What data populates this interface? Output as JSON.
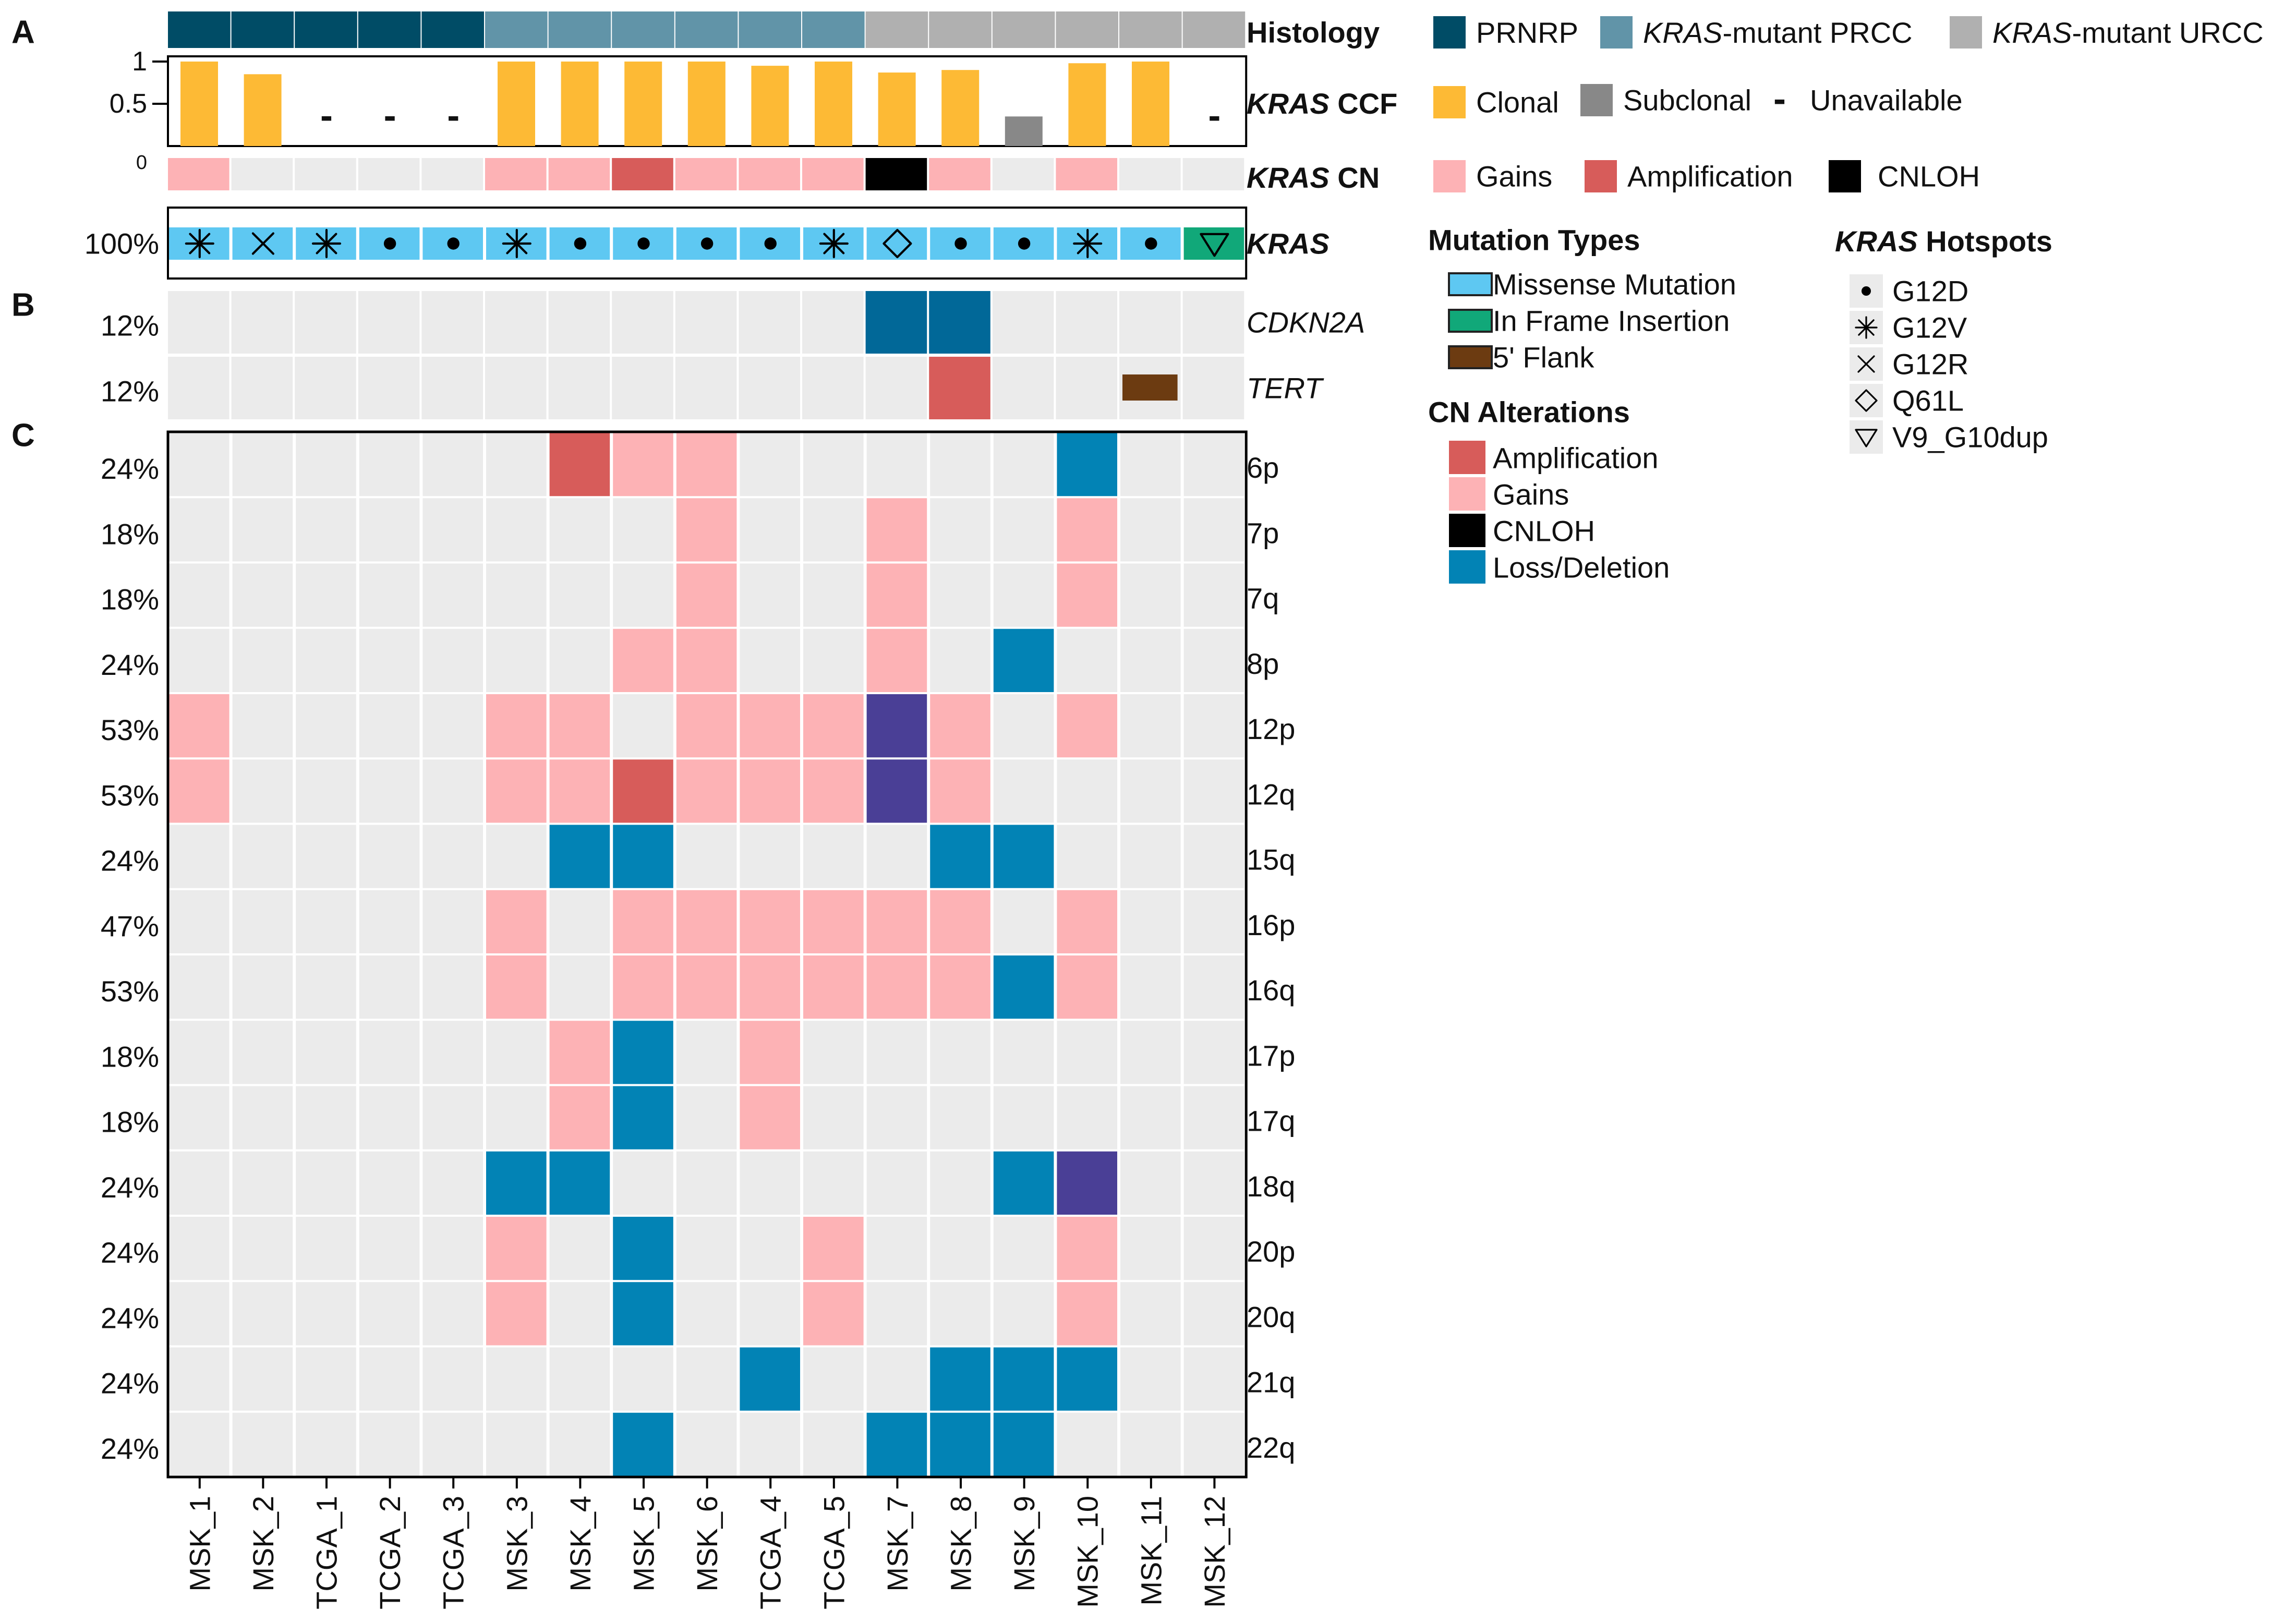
{
  "colors": {
    "background_cell": "#EBEBEB",
    "PRNRP": "#004C66",
    "PRCC": "#6194A8",
    "URCC": "#B0B0B0",
    "clonal": "#FDBA35",
    "subclonal": "#888888",
    "gain": "#FDB2B5",
    "amplification": "#D75C5A",
    "cnloh": "#000000",
    "loss": "#0283B5",
    "cdkn2a_loss": "#016898",
    "other_event": "#4A3F96",
    "missense": "#5EC8F2",
    "inframe": "#11A879",
    "flank": "#6C3B11"
  },
  "panel_letters": [
    "A",
    "B",
    "C"
  ],
  "chart_data": {
    "type": "heatmap",
    "samples": [
      "MSK_1",
      "MSK_2",
      "TCGA_1",
      "TCGA_2",
      "TCGA_3",
      "MSK_3",
      "MSK_4",
      "MSK_5",
      "MSK_6",
      "TCGA_4",
      "TCGA_5",
      "MSK_7",
      "MSK_8",
      "MSK_9",
      "MSK_10",
      "MSK_11",
      "MSK_12"
    ],
    "histology": {
      "label": "Histology",
      "values": [
        "PRNRP",
        "PRNRP",
        "PRNRP",
        "PRNRP",
        "PRNRP",
        "PRCC",
        "PRCC",
        "PRCC",
        "PRCC",
        "PRCC",
        "PRCC",
        "URCC",
        "URCC",
        "URCC",
        "URCC",
        "URCC",
        "URCC"
      ]
    },
    "ccf": {
      "label_gene": "KRAS",
      "label_suffix": " CCF",
      "ylim": [
        0,
        1
      ],
      "ticks": [
        "1",
        "0.5",
        "0"
      ],
      "tick_values": [
        1,
        0.5,
        0
      ],
      "values": [
        1.0,
        0.85,
        null,
        null,
        null,
        1.0,
        1.0,
        1.0,
        1.0,
        0.95,
        1.0,
        0.87,
        0.9,
        0.35,
        0.98,
        1.0,
        null
      ],
      "clonality": [
        "clonal",
        "clonal",
        "unavailable",
        "unavailable",
        "unavailable",
        "clonal",
        "clonal",
        "clonal",
        "clonal",
        "clonal",
        "clonal",
        "clonal",
        "clonal",
        "subclonal",
        "clonal",
        "clonal",
        "unavailable"
      ],
      "unavailable_mark": "-"
    },
    "kras_cn": {
      "label_gene": "KRAS",
      "label_suffix": " CN",
      "values": [
        "gain",
        "none",
        "none",
        "none",
        "none",
        "gain",
        "gain",
        "amplification",
        "gain",
        "gain",
        "gain",
        "cnloh",
        "gain",
        "none",
        "gain",
        "none",
        "none"
      ]
    },
    "kras_mutation": {
      "label": "KRAS",
      "percent": "100%",
      "types": [
        "missense",
        "missense",
        "missense",
        "missense",
        "missense",
        "missense",
        "missense",
        "missense",
        "missense",
        "missense",
        "missense",
        "missense",
        "missense",
        "missense",
        "missense",
        "missense",
        "inframe"
      ],
      "hotspots": [
        "G12V",
        "G12R",
        "G12V",
        "G12D",
        "G12D",
        "G12V",
        "G12D",
        "G12D",
        "G12D",
        "G12D",
        "G12V",
        "Q61L",
        "G12D",
        "G12D",
        "G12V",
        "G12D",
        "V9_G10dup"
      ]
    },
    "genes": [
      {
        "name": "CDKN2A",
        "percent": "12%",
        "values": [
          "none",
          "none",
          "none",
          "none",
          "none",
          "none",
          "none",
          "none",
          "none",
          "none",
          "none",
          "cdkn2a_loss",
          "cdkn2a_loss",
          "none",
          "none",
          "none",
          "none"
        ]
      },
      {
        "name": "TERT",
        "percent": "12%",
        "values": [
          "none",
          "none",
          "none",
          "none",
          "none",
          "none",
          "none",
          "none",
          "none",
          "none",
          "none",
          "none",
          "amplification",
          "none",
          "none",
          "flank",
          "none"
        ]
      }
    ],
    "arms": [
      {
        "name": "6p",
        "percent": "24%",
        "values": [
          "none",
          "none",
          "none",
          "none",
          "none",
          "none",
          "amplification",
          "gain",
          "gain",
          "none",
          "none",
          "none",
          "none",
          "none",
          "loss",
          "none",
          "none"
        ]
      },
      {
        "name": "7p",
        "percent": "18%",
        "values": [
          "none",
          "none",
          "none",
          "none",
          "none",
          "none",
          "none",
          "none",
          "gain",
          "none",
          "none",
          "gain",
          "none",
          "none",
          "gain",
          "none",
          "none"
        ]
      },
      {
        "name": "7q",
        "percent": "18%",
        "values": [
          "none",
          "none",
          "none",
          "none",
          "none",
          "none",
          "none",
          "none",
          "gain",
          "none",
          "none",
          "gain",
          "none",
          "none",
          "gain",
          "none",
          "none"
        ]
      },
      {
        "name": "8p",
        "percent": "24%",
        "values": [
          "none",
          "none",
          "none",
          "none",
          "none",
          "none",
          "none",
          "gain",
          "gain",
          "none",
          "none",
          "gain",
          "none",
          "loss",
          "none",
          "none",
          "none"
        ]
      },
      {
        "name": "12p",
        "percent": "53%",
        "values": [
          "gain",
          "none",
          "none",
          "none",
          "none",
          "gain",
          "gain",
          "none",
          "gain",
          "gain",
          "gain",
          "other",
          "gain",
          "none",
          "gain",
          "none",
          "none"
        ]
      },
      {
        "name": "12q",
        "percent": "53%",
        "values": [
          "gain",
          "none",
          "none",
          "none",
          "none",
          "gain",
          "gain",
          "amplification",
          "gain",
          "gain",
          "gain",
          "other",
          "gain",
          "none",
          "none",
          "none",
          "none"
        ]
      },
      {
        "name": "15q",
        "percent": "24%",
        "values": [
          "none",
          "none",
          "none",
          "none",
          "none",
          "none",
          "loss",
          "loss",
          "none",
          "none",
          "none",
          "none",
          "loss",
          "loss",
          "none",
          "none",
          "none"
        ]
      },
      {
        "name": "16p",
        "percent": "47%",
        "values": [
          "none",
          "none",
          "none",
          "none",
          "none",
          "gain",
          "none",
          "gain",
          "gain",
          "gain",
          "gain",
          "gain",
          "gain",
          "none",
          "gain",
          "none",
          "none"
        ]
      },
      {
        "name": "16q",
        "percent": "53%",
        "values": [
          "none",
          "none",
          "none",
          "none",
          "none",
          "gain",
          "none",
          "gain",
          "gain",
          "gain",
          "gain",
          "gain",
          "gain",
          "loss",
          "gain",
          "none",
          "none"
        ]
      },
      {
        "name": "17p",
        "percent": "18%",
        "values": [
          "none",
          "none",
          "none",
          "none",
          "none",
          "none",
          "gain",
          "loss",
          "none",
          "gain",
          "none",
          "none",
          "none",
          "none",
          "none",
          "none",
          "none"
        ]
      },
      {
        "name": "17q",
        "percent": "18%",
        "values": [
          "none",
          "none",
          "none",
          "none",
          "none",
          "none",
          "gain",
          "loss",
          "none",
          "gain",
          "none",
          "none",
          "none",
          "none",
          "none",
          "none",
          "none"
        ]
      },
      {
        "name": "18q",
        "percent": "24%",
        "values": [
          "none",
          "none",
          "none",
          "none",
          "none",
          "loss",
          "loss",
          "none",
          "none",
          "none",
          "none",
          "none",
          "none",
          "loss",
          "other",
          "none",
          "none"
        ]
      },
      {
        "name": "20p",
        "percent": "24%",
        "values": [
          "none",
          "none",
          "none",
          "none",
          "none",
          "gain",
          "none",
          "loss",
          "none",
          "none",
          "gain",
          "none",
          "none",
          "none",
          "gain",
          "none",
          "none"
        ]
      },
      {
        "name": "20q",
        "percent": "24%",
        "values": [
          "none",
          "none",
          "none",
          "none",
          "none",
          "gain",
          "none",
          "loss",
          "none",
          "none",
          "gain",
          "none",
          "none",
          "none",
          "gain",
          "none",
          "none"
        ]
      },
      {
        "name": "21q",
        "percent": "24%",
        "values": [
          "none",
          "none",
          "none",
          "none",
          "none",
          "none",
          "none",
          "none",
          "none",
          "loss",
          "none",
          "none",
          "loss",
          "loss",
          "loss",
          "none",
          "none"
        ]
      },
      {
        "name": "22q",
        "percent": "24%",
        "values": [
          "none",
          "none",
          "none",
          "none",
          "none",
          "none",
          "none",
          "loss",
          "none",
          "none",
          "none",
          "loss",
          "loss",
          "loss",
          "none",
          "none",
          "none"
        ]
      }
    ]
  },
  "legend": {
    "histology": [
      {
        "key": "PRNRP",
        "pre": "",
        "italic": "",
        "post": "PRNRP"
      },
      {
        "key": "PRCC",
        "pre": "",
        "italic": "KRAS",
        "post": "-mutant PRCC"
      },
      {
        "key": "URCC",
        "pre": "",
        "italic": "KRAS",
        "post": "-mutant URCC"
      }
    ],
    "ccf": [
      {
        "key": "clonal",
        "label": "Clonal"
      },
      {
        "key": "subclonal",
        "label": "Subclonal"
      }
    ],
    "ccf_unavailable": {
      "mark": "-",
      "label": "Unavailable"
    },
    "cn": [
      {
        "key": "gain",
        "label": "Gains"
      },
      {
        "key": "amplification",
        "label": "Amplification"
      },
      {
        "key": "cnloh",
        "label": "CNLOH"
      }
    ],
    "mutation_title": "Mutation Types",
    "mutation_types": [
      {
        "key": "missense",
        "label": "Missense Mutation"
      },
      {
        "key": "inframe",
        "label": "In Frame Insertion"
      },
      {
        "key": "flank",
        "label": "5' Flank"
      }
    ],
    "cn_alt_title": "CN Alterations",
    "cn_alterations": [
      {
        "key": "amplification",
        "label": "Amplification"
      },
      {
        "key": "gain",
        "label": "Gains"
      },
      {
        "key": "cnloh",
        "label": "CNLOH"
      },
      {
        "key": "loss",
        "label": "Loss/Deletion"
      }
    ],
    "hotspot_title_gene": "KRAS",
    "hotspot_title_suffix": " Hotspots",
    "hotspots": [
      {
        "key": "G12D",
        "label": "G12D"
      },
      {
        "key": "G12V",
        "label": "G12V"
      },
      {
        "key": "G12R",
        "label": "G12R"
      },
      {
        "key": "Q61L",
        "label": "Q61L"
      },
      {
        "key": "V9_G10dup",
        "label": "V9_G10dup"
      }
    ]
  }
}
